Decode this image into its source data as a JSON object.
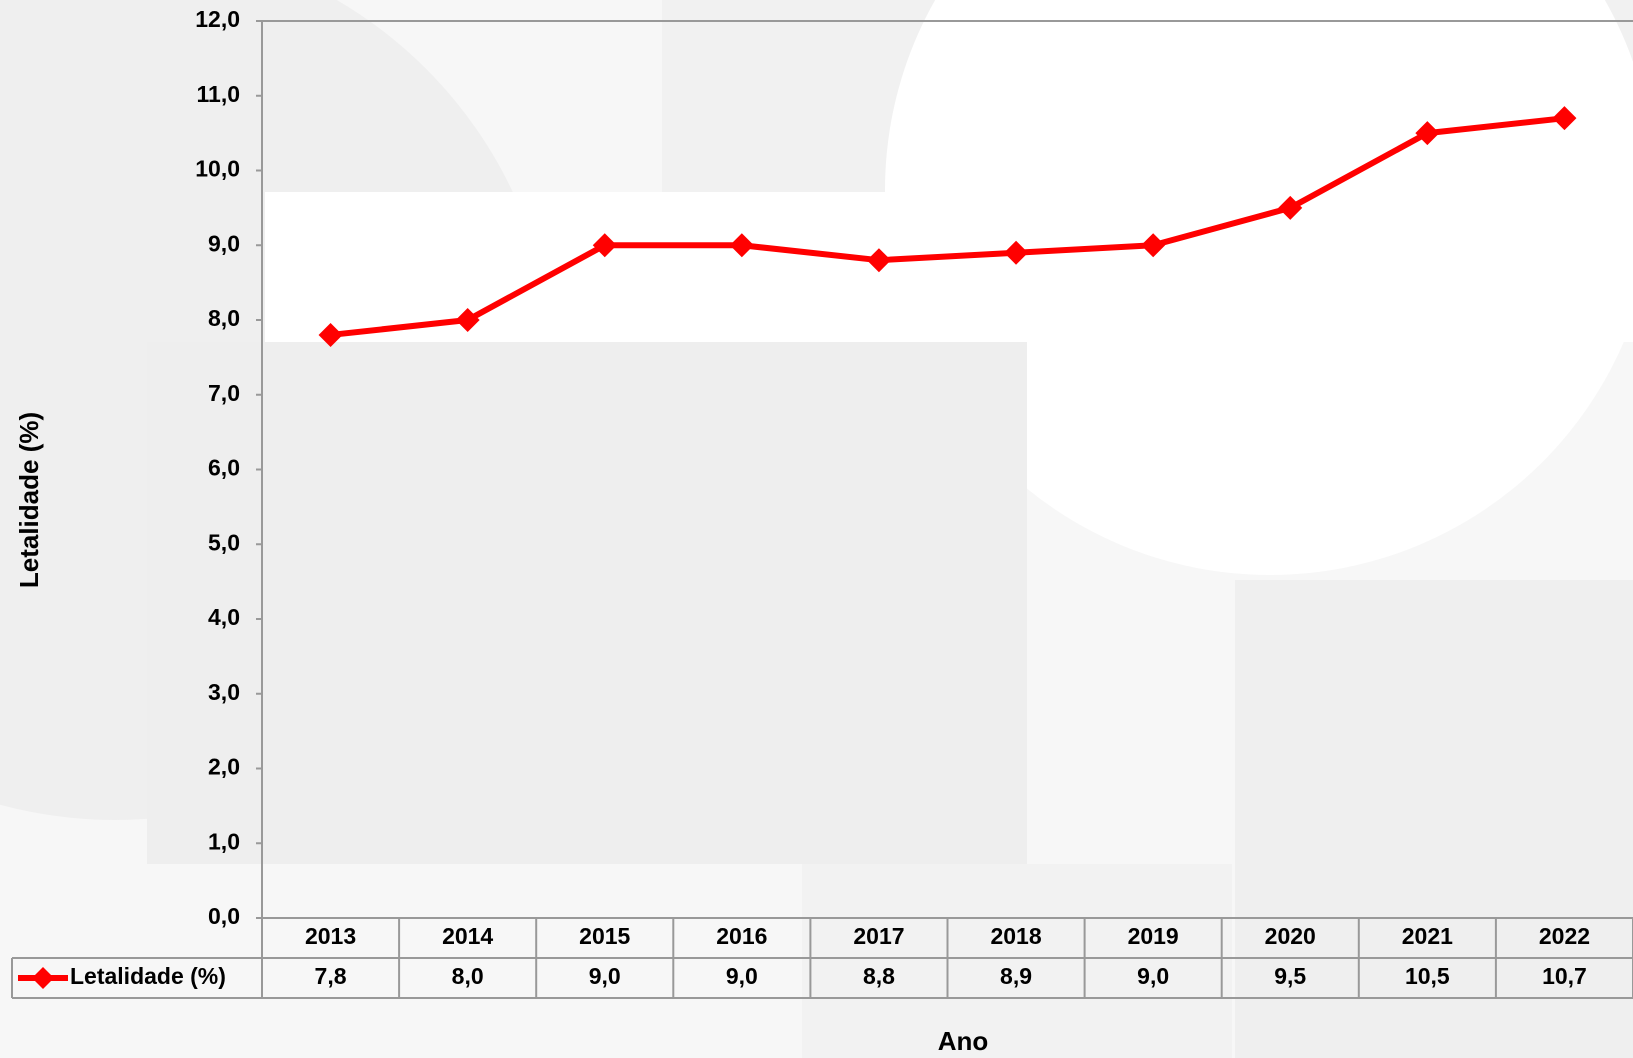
{
  "chart_data": {
    "type": "line",
    "x_label": "Ano",
    "y_label": "Letalidade (%)",
    "categories": [
      "2013",
      "2014",
      "2015",
      "2016",
      "2017",
      "2018",
      "2019",
      "2020",
      "2021",
      "2022"
    ],
    "series": [
      {
        "name": "Letalidade (%)",
        "color": "#ff0000",
        "values": [
          7.8,
          8.0,
          9.0,
          9.0,
          8.8,
          8.9,
          9.0,
          9.5,
          10.5,
          10.7
        ],
        "value_labels": [
          "7,8",
          "8,0",
          "9,0",
          "9,0",
          "8,8",
          "8,9",
          "9,0",
          "9,5",
          "10,5",
          "10,7"
        ]
      }
    ],
    "ylim": [
      0,
      12
    ],
    "yticks": [
      {
        "value": 0,
        "label": "0,0"
      },
      {
        "value": 1,
        "label": "1,0"
      },
      {
        "value": 2,
        "label": "2,0"
      },
      {
        "value": 3,
        "label": "3,0"
      },
      {
        "value": 4,
        "label": "4,0"
      },
      {
        "value": 5,
        "label": "5,0"
      },
      {
        "value": 6,
        "label": "6,0"
      },
      {
        "value": 7,
        "label": "7,0"
      },
      {
        "value": 8,
        "label": "8,0"
      },
      {
        "value": 9,
        "label": "9,0"
      },
      {
        "value": 10,
        "label": "10,0"
      },
      {
        "value": 11,
        "label": "11,0"
      },
      {
        "value": 12,
        "label": "12,0"
      }
    ],
    "grid": false,
    "data_table": true
  }
}
